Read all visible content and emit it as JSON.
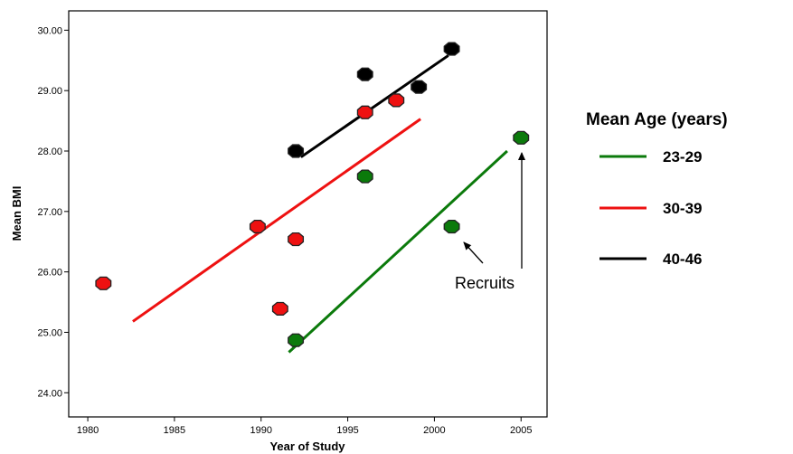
{
  "chart_data": {
    "type": "scatter",
    "xlabel": "Year of Study",
    "ylabel": "Mean BMI",
    "xlim": [
      1978.9,
      2006.5
    ],
    "ylim": [
      23.6,
      30.32
    ],
    "x_ticks": [
      1980,
      1985,
      1990,
      1995,
      2000,
      2005
    ],
    "x_tick_labels": [
      "1980",
      "1985",
      "1990",
      "1995",
      "2000",
      "2005"
    ],
    "y_ticks": [
      24,
      25,
      26,
      27,
      28,
      29,
      30
    ],
    "y_tick_labels": [
      "24.00",
      "25.00",
      "26.00",
      "27.00",
      "28.00",
      "29.00",
      "30.00"
    ],
    "legend": {
      "title": "Mean Age (years)",
      "placement": "right",
      "entries": [
        {
          "label": "23-29",
          "color": "#0b7a0b"
        },
        {
          "label": "30-39",
          "color": "#ee1111"
        },
        {
          "label": "40-46",
          "color": "#000000"
        }
      ]
    },
    "series": [
      {
        "name": "23-29",
        "color": "#0b7a0b",
        "points": [
          [
            1992,
            24.87
          ],
          [
            1996,
            27.58
          ],
          [
            2001,
            26.75
          ],
          [
            2005,
            28.22
          ]
        ],
        "fit_line": [
          [
            1991.6,
            24.67
          ],
          [
            2004.2,
            28.0
          ]
        ]
      },
      {
        "name": "30-39",
        "color": "#ee1111",
        "points": [
          [
            1980.9,
            25.81
          ],
          [
            1989.8,
            26.75
          ],
          [
            1992,
            26.54
          ],
          [
            1991.1,
            25.39
          ],
          [
            1996,
            28.64
          ],
          [
            1997.8,
            28.84
          ]
        ],
        "fit_line": [
          [
            1982.6,
            25.18
          ],
          [
            1999.2,
            28.53
          ]
        ]
      },
      {
        "name": "40-46",
        "color": "#000000",
        "points": [
          [
            1992,
            28.0
          ],
          [
            1996,
            29.27
          ],
          [
            1999.1,
            29.06
          ],
          [
            2001,
            29.69
          ]
        ],
        "fit_line": [
          [
            1992.3,
            27.9
          ],
          [
            2000.8,
            29.58
          ]
        ]
      }
    ],
    "annotations": [
      {
        "text": "Recruits"
      }
    ]
  }
}
